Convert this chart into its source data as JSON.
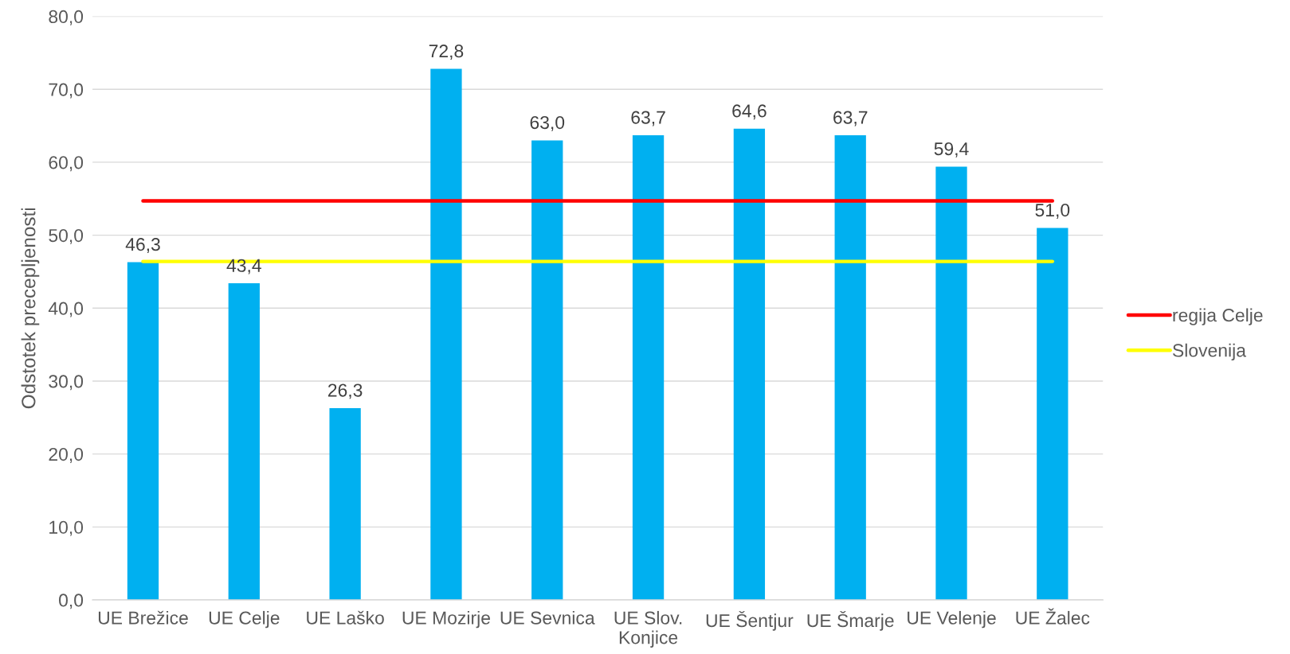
{
  "chart_data": {
    "type": "bar",
    "ylabel": "Odstotek precepljenosti",
    "categories": [
      "UE Brežice",
      "UE Celje",
      "UE Laško",
      "UE Mozirje",
      "UE Sevnica",
      "UE Slov.\nKonjice",
      "UE Šentjur",
      "UE Šmarje",
      "UE Velenje",
      "UE Žalec"
    ],
    "series": [
      {
        "color": "#00b0f0",
        "values": [
          46.3,
          43.4,
          26.3,
          72.8,
          63.0,
          63.7,
          64.6,
          63.7,
          59.4,
          51.0
        ],
        "value_labels": [
          "46,3",
          "43,4",
          "26,3",
          "72,8",
          "63,0",
          "63,7",
          "64,6",
          "63,7",
          "59,4",
          "51,0"
        ]
      },
      {
        "type": "line",
        "name": "regija Celje",
        "color": "#ff0000",
        "values": [
          54.7,
          54.7,
          54.7,
          54.7,
          54.7,
          54.7,
          54.7,
          54.7,
          54.7,
          54.7
        ]
      },
      {
        "type": "line",
        "name": "Slovenija",
        "color": "#ffff00",
        "values": [
          46.4,
          46.4,
          46.4,
          46.4,
          46.4,
          46.4,
          46.4,
          46.4,
          46.4,
          46.4
        ]
      }
    ],
    "ylim": [
      0,
      80
    ],
    "yticks": [
      {
        "value": 0,
        "label": "0,0"
      },
      {
        "value": 10,
        "label": "10,0"
      },
      {
        "value": 20,
        "label": "20,0"
      },
      {
        "value": 30,
        "label": "30,0"
      },
      {
        "value": 40,
        "label": "40,0"
      },
      {
        "value": 50,
        "label": "50,0"
      },
      {
        "value": 60,
        "label": "60,0"
      },
      {
        "value": 70,
        "label": "70,0"
      },
      {
        "value": 80,
        "label": "80,0"
      }
    ],
    "grid": "y",
    "legend": "right",
    "line_style": "solid"
  }
}
